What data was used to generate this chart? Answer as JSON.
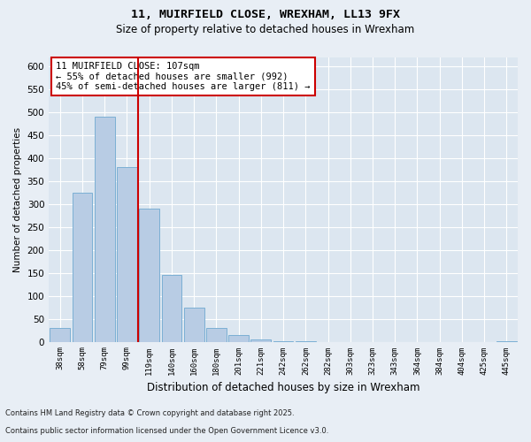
{
  "title1": "11, MUIRFIELD CLOSE, WREXHAM, LL13 9FX",
  "title2": "Size of property relative to detached houses in Wrexham",
  "xlabel": "Distribution of detached houses by size in Wrexham",
  "ylabel": "Number of detached properties",
  "categories": [
    "38sqm",
    "58sqm",
    "79sqm",
    "99sqm",
    "119sqm",
    "140sqm",
    "160sqm",
    "180sqm",
    "201sqm",
    "221sqm",
    "242sqm",
    "262sqm",
    "282sqm",
    "303sqm",
    "323sqm",
    "343sqm",
    "364sqm",
    "384sqm",
    "404sqm",
    "425sqm",
    "445sqm"
  ],
  "values": [
    30,
    325,
    490,
    380,
    290,
    145,
    75,
    30,
    15,
    5,
    2,
    1,
    0,
    0,
    0,
    0,
    0,
    0,
    0,
    0,
    2
  ],
  "bar_color": "#b8cce4",
  "bar_edge_color": "#7bafd4",
  "vline_x": 3.5,
  "vline_color": "#cc0000",
  "annotation_text": "11 MUIRFIELD CLOSE: 107sqm\n← 55% of detached houses are smaller (992)\n45% of semi-detached houses are larger (811) →",
  "annotation_box_color": "#cc0000",
  "ylim": [
    0,
    620
  ],
  "yticks": [
    0,
    50,
    100,
    150,
    200,
    250,
    300,
    350,
    400,
    450,
    500,
    550,
    600
  ],
  "footnote1": "Contains HM Land Registry data © Crown copyright and database right 2025.",
  "footnote2": "Contains public sector information licensed under the Open Government Licence v3.0.",
  "background_color": "#e8eef5",
  "grid_color": "#ffffff",
  "plot_bg_color": "#dce6f0"
}
